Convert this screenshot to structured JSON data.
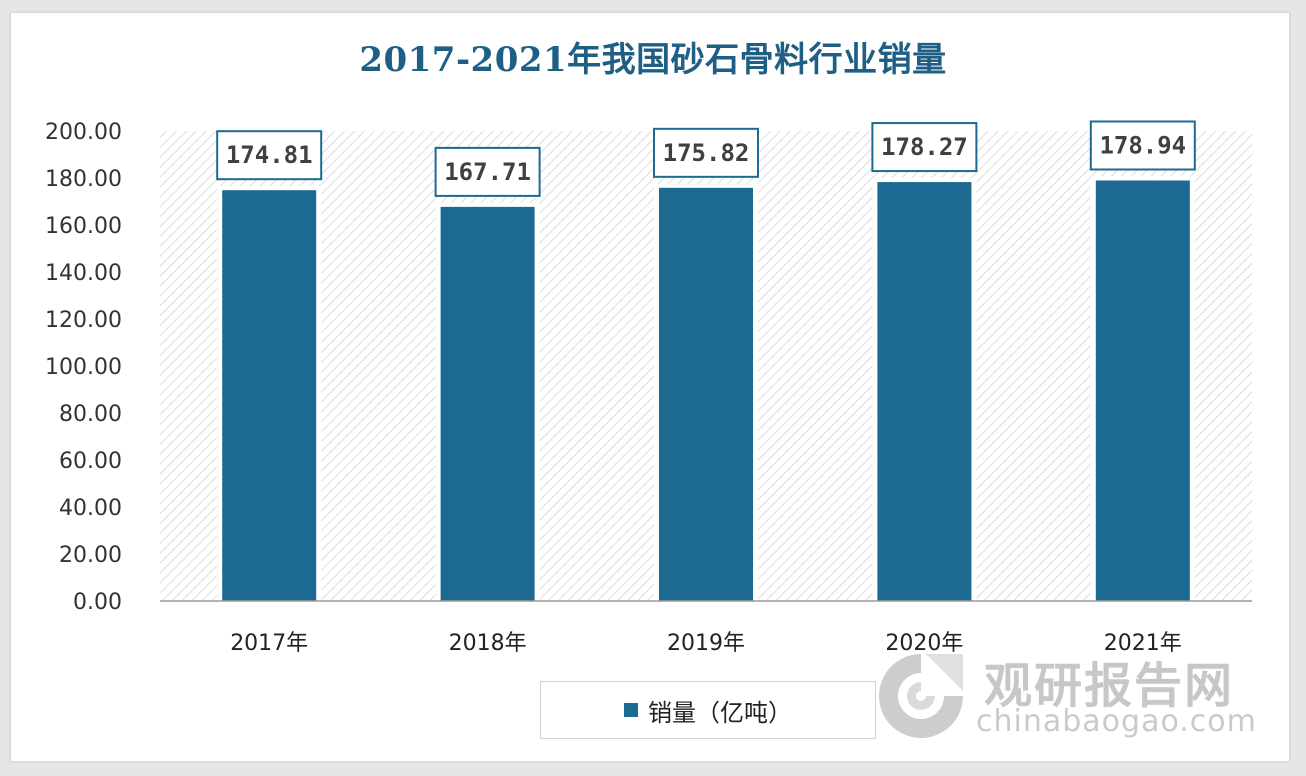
{
  "chart_data": {
    "type": "bar",
    "title": "2017-2021年我国砂石骨料行业销量",
    "categories": [
      "2017年",
      "2018年",
      "2019年",
      "2020年",
      "2021年"
    ],
    "series": [
      {
        "name": "销量（亿吨）",
        "values": [
          174.81,
          167.71,
          175.82,
          178.27,
          178.94
        ]
      }
    ],
    "data_labels": [
      "174.81",
      "167.71",
      "175.82",
      "178.27",
      "178.94"
    ],
    "ylim": [
      0,
      200
    ],
    "yticks": [
      "0.00",
      "20.00",
      "40.00",
      "60.00",
      "80.00",
      "100.00",
      "120.00",
      "140.00",
      "160.00",
      "180.00",
      "200.00"
    ],
    "legend_position": "bottom",
    "bar_color": "#1c6a91"
  },
  "legend": {
    "label": "销量（亿吨）"
  },
  "watermark": {
    "name": "观研报告网",
    "domain": "chinabaogao.com"
  }
}
